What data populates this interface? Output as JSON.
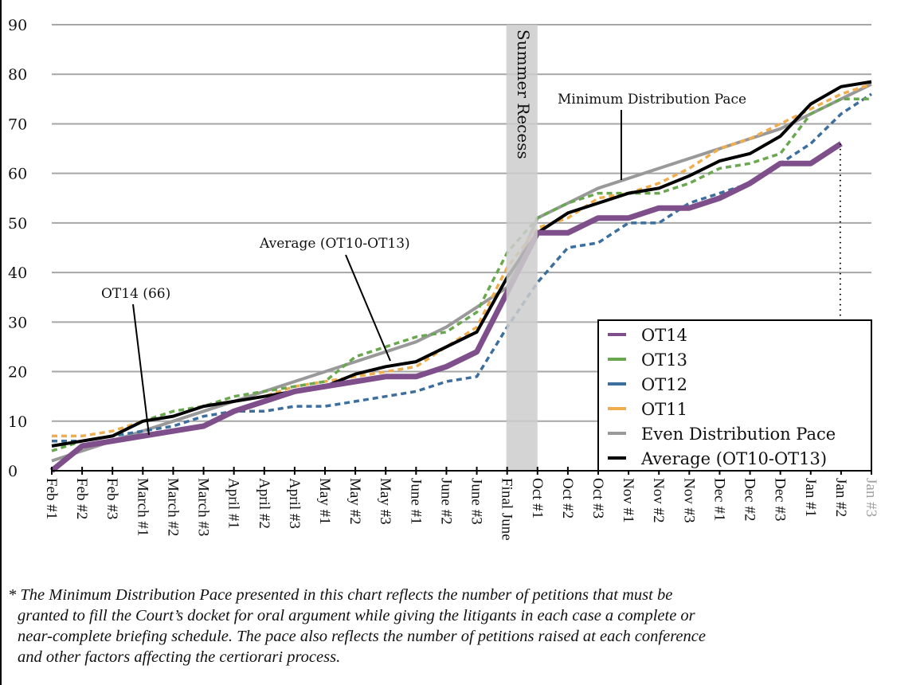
{
  "chart_data": {
    "type": "line",
    "title": "",
    "xlabel": "",
    "ylabel": "",
    "ylim": [
      0,
      90
    ],
    "yticks": [
      0,
      10,
      20,
      30,
      40,
      50,
      60,
      70,
      80,
      90
    ],
    "grid": true,
    "legend_position": "bottom-right",
    "categories": [
      "Feb #1",
      "Feb #2",
      "Feb #3",
      "March #1",
      "March #2",
      "March #3",
      "April #1",
      "April #2",
      "April #3",
      "May #1",
      "May #2",
      "May #3",
      "June #1",
      "June #2",
      "June #3",
      "Final June",
      "Oct #1",
      "Oct #2",
      "Oct #3",
      "Nov #1",
      "Nov #2",
      "Nov #3",
      "Dec #1",
      "Dec #2",
      "Dec #3",
      "Jan #1",
      "Jan #2",
      "Jan #3"
    ],
    "greyed_categories": [
      "Jan #3"
    ],
    "shaded_region": {
      "label": "Summer Recess",
      "from": "Final June",
      "to": "Oct #1",
      "color": "#cccccc"
    },
    "series": [
      {
        "name": "OT14",
        "color": "#7f4f8c",
        "style": "solid-thick",
        "values": [
          0,
          5,
          6,
          7,
          8,
          9,
          12,
          14,
          16,
          17,
          18,
          19,
          19,
          21,
          24,
          36,
          48,
          48,
          51,
          51,
          53,
          53,
          55,
          58,
          62,
          62,
          66,
          null
        ]
      },
      {
        "name": "OT13",
        "color": "#6aa84f",
        "style": "dashed",
        "values": [
          4,
          6,
          7,
          10,
          12,
          13,
          15,
          16,
          17,
          18,
          23,
          25,
          27,
          28,
          32,
          44,
          51,
          54,
          56,
          56,
          56,
          58,
          61,
          62,
          64,
          72,
          75,
          75
        ]
      },
      {
        "name": "OT12",
        "color": "#3d6f9e",
        "style": "dashed",
        "values": [
          6,
          6,
          7,
          8,
          9,
          11,
          12,
          12,
          13,
          13,
          14,
          15,
          16,
          18,
          19,
          29,
          38,
          45,
          46,
          50,
          50,
          54,
          56,
          58,
          62,
          66,
          72,
          76
        ]
      },
      {
        "name": "OT11",
        "color": "#f0ad4e",
        "style": "dashed",
        "values": [
          7,
          7,
          8,
          10,
          11,
          13,
          14,
          15,
          17,
          18,
          19,
          20,
          21,
          25,
          29,
          41,
          49,
          51,
          55,
          56,
          58,
          61,
          65,
          67,
          70,
          73,
          76,
          78
        ]
      },
      {
        "name": "Even Distribution Pace",
        "color": "#999999",
        "style": "solid",
        "values": [
          2,
          4,
          6,
          8,
          10,
          12,
          14,
          16,
          18,
          20,
          22,
          24,
          26,
          29,
          33,
          37,
          51,
          54,
          57,
          59,
          61,
          63,
          65,
          67,
          69,
          72,
          75,
          78
        ]
      },
      {
        "name": "Average (OT10-OT13)",
        "color": "#000000",
        "style": "solid",
        "values": [
          5,
          6,
          7,
          10,
          11,
          13,
          14,
          15,
          16,
          17,
          19.5,
          21,
          22,
          25,
          28,
          39,
          48,
          52,
          54,
          56,
          57,
          59.5,
          62.5,
          64,
          67.5,
          74,
          77.5,
          78.5
        ]
      }
    ],
    "annotations": [
      {
        "text": "OT14 (66)",
        "points_to": {
          "series": "OT14",
          "category": "March #1"
        }
      },
      {
        "text": "Average (OT10-OT13)",
        "points_to": {
          "series": "Average (OT10-OT13)",
          "category": "May #3"
        }
      },
      {
        "text": "Minimum Distribution Pace",
        "points_to": {
          "series": "Even Distribution Pace",
          "category": "Nov #1"
        }
      }
    ],
    "reference_marker": {
      "style": "dotted-vertical",
      "category": "Jan #2",
      "from_value": 66
    }
  },
  "footnote": {
    "lines": [
      "* The Minimum Distribution Pace presented in this chart reflects the number of petitions that must be",
      "granted to fill the Court’s docket for oral argument while giving the litigants in each case a complete or",
      "near-complete briefing schedule. The pace also reflects the number of petitions raised at each conference",
      "and other factors affecting the certiorari process."
    ]
  }
}
